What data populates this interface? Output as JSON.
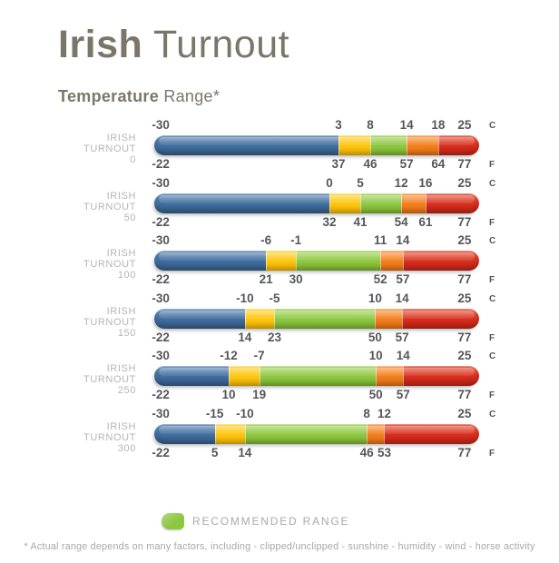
{
  "page": {
    "title_bold": "Irish",
    "title_regular": " Turnout",
    "subtitle_bold": "Temperature",
    "subtitle_regular": " Range*",
    "footnote": "* Actual range depends on many factors, including - clipped/unclipped - sunshine - humidity - wind - horse activity"
  },
  "legend": {
    "label": "RECOMMENDED RANGE",
    "swatch_color": "#8dc63f"
  },
  "chart_data": {
    "type": "bar",
    "title": "Irish Turnout Temperature Range",
    "unit_top": "C",
    "unit_bottom": "F",
    "axis": {
      "celsius_min": -30,
      "celsius_max": 25,
      "fahrenheit_min": -22,
      "fahrenheit_max": 77
    },
    "segment_order": [
      "blue",
      "yellow",
      "green",
      "orange",
      "red"
    ],
    "segment_colors": {
      "blue": "#3e6c9d",
      "yellow": "#fdc913",
      "green": "#8cc63f",
      "orange": "#f58220",
      "red": "#d52a1d"
    },
    "recommended_segment": "green",
    "first_label_pct": 2,
    "last_label_pct": 95.5,
    "rows": [
      {
        "name_lines": [
          "IRISH",
          "TURNOUT",
          "0"
        ],
        "celsius": [
          -30,
          3,
          8,
          14,
          18,
          25
        ],
        "fahrenheit": [
          -22,
          37,
          46,
          57,
          64,
          77
        ],
        "boundaries_pct": [
          56.7,
          66.5,
          77.7,
          87.4
        ]
      },
      {
        "name_lines": [
          "IRISH",
          "TURNOUT",
          "50"
        ],
        "celsius": [
          -30,
          0,
          5,
          12,
          16,
          25
        ],
        "fahrenheit": [
          -22,
          32,
          41,
          54,
          61,
          77
        ],
        "boundaries_pct": [
          53.9,
          63.4,
          76.0,
          83.5
        ]
      },
      {
        "name_lines": [
          "IRISH",
          "TURNOUT",
          "100"
        ],
        "celsius": [
          -30,
          -6,
          -1,
          11,
          14,
          25
        ],
        "fahrenheit": [
          -22,
          21,
          30,
          52,
          57,
          77
        ],
        "boundaries_pct": [
          34.4,
          43.6,
          69.6,
          76.5
        ]
      },
      {
        "name_lines": [
          "IRISH",
          "TURNOUT",
          "150"
        ],
        "celsius": [
          -30,
          -10,
          -5,
          10,
          14,
          25
        ],
        "fahrenheit": [
          -22,
          14,
          23,
          50,
          57,
          77
        ],
        "boundaries_pct": [
          27.9,
          37.0,
          68.0,
          76.3
        ]
      },
      {
        "name_lines": [
          "IRISH",
          "TURNOUT",
          "250"
        ],
        "celsius": [
          -30,
          -12,
          -7,
          10,
          14,
          25
        ],
        "fahrenheit": [
          -22,
          10,
          19,
          50,
          57,
          77
        ],
        "boundaries_pct": [
          22.9,
          32.3,
          68.2,
          76.6
        ]
      },
      {
        "name_lines": [
          "IRISH",
          "TURNOUT",
          "300"
        ],
        "celsius": [
          -30,
          -15,
          -10,
          8,
          12,
          25
        ],
        "fahrenheit": [
          -22,
          5,
          14,
          46,
          53,
          77
        ],
        "boundaries_pct": [
          18.6,
          27.9,
          65.4,
          70.8
        ]
      }
    ]
  }
}
